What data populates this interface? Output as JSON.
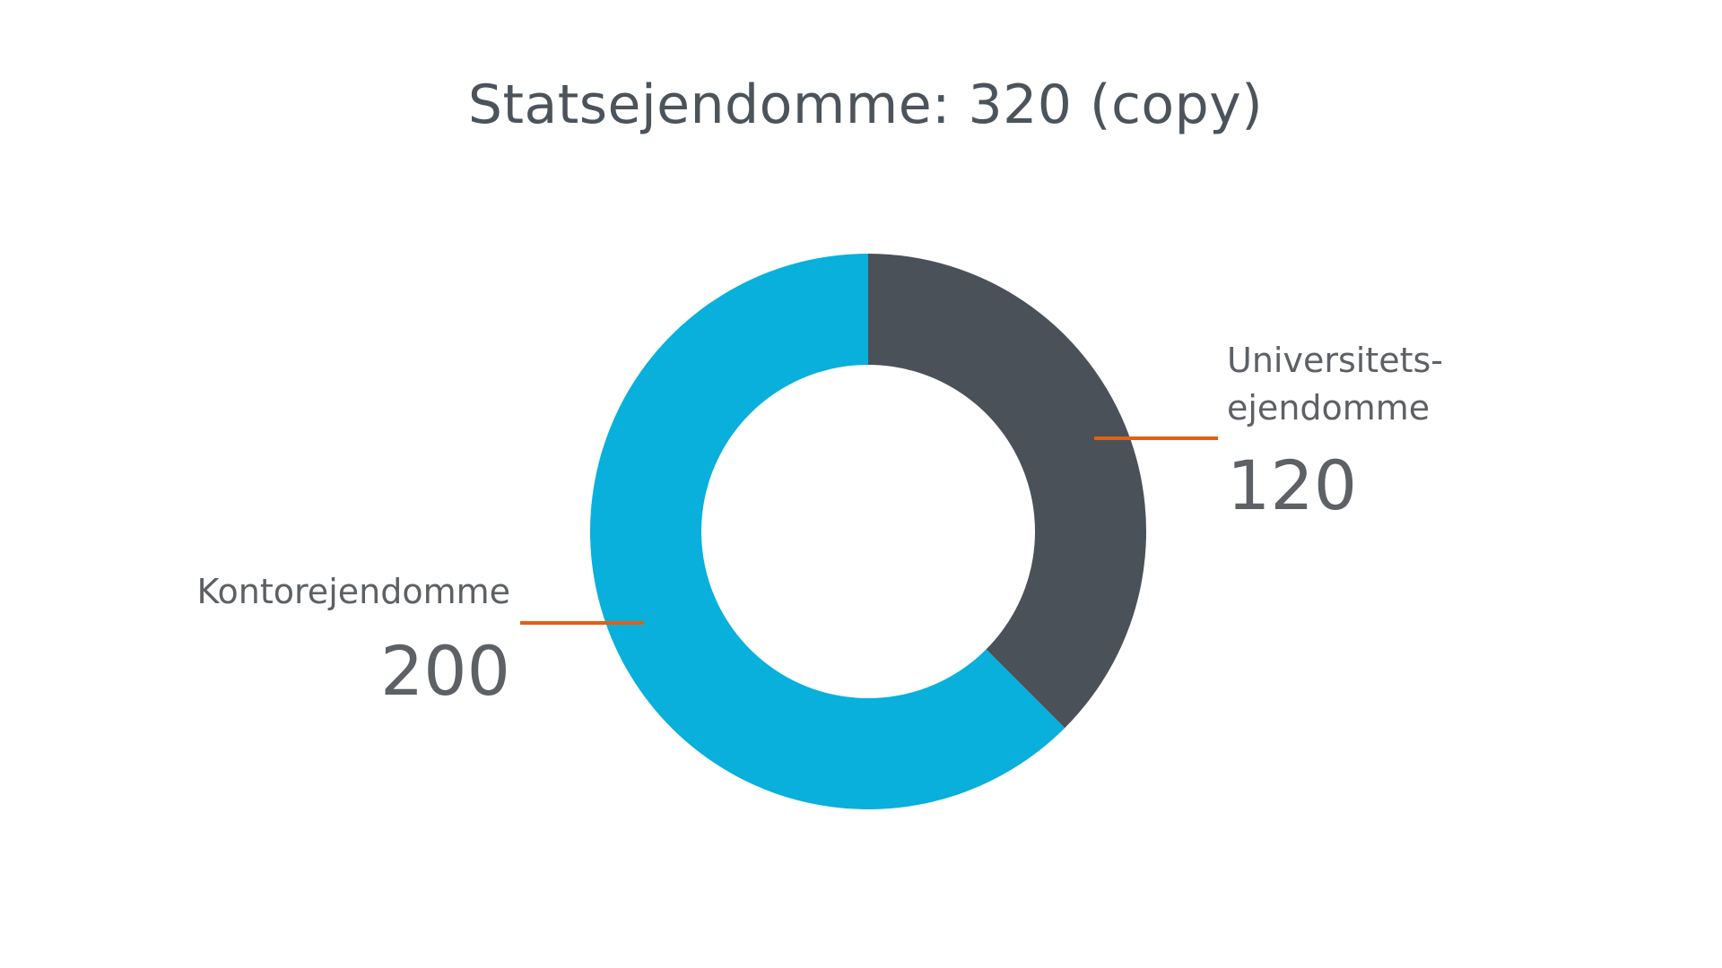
{
  "chart_data": {
    "type": "pie",
    "title": "Statsejendomme: 320 (copy)",
    "slices": [
      {
        "label_lines": [
          "Universitets-",
          "ejendomme"
        ],
        "value": 120,
        "value_label": "120",
        "color": "#4a5159"
      },
      {
        "label_lines": [
          "Kontorejendomme"
        ],
        "value": 200,
        "value_label": "200",
        "color": "#08b0db"
      }
    ],
    "leader_color": "#e0610f",
    "text_color": "#5d6165",
    "title_color": "#4b535b"
  }
}
